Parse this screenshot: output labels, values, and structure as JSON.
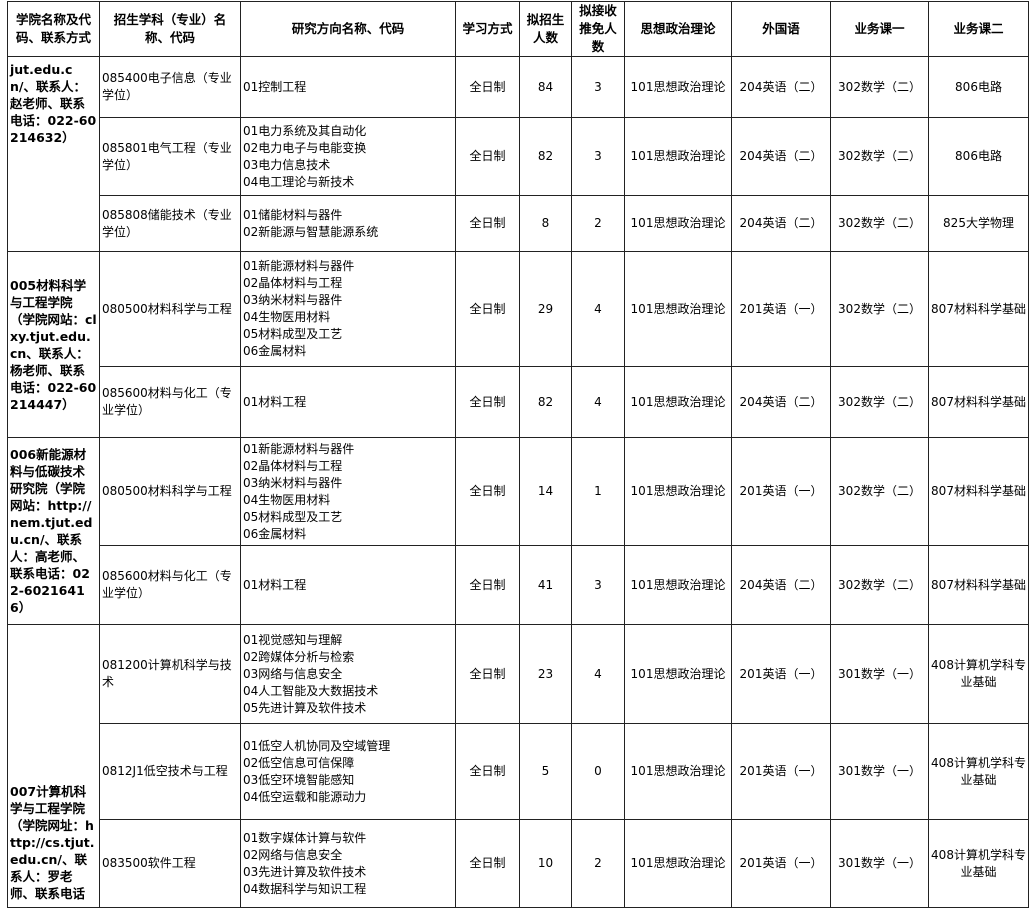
{
  "headers": [
    "学院名称及代码、联系方式",
    "招生学科（专业）名称、代码",
    "研究方向名称、代码",
    "学习方式",
    "拟招生人数",
    "拟接收推免人数",
    "思想政治理论",
    "外国语",
    "业务课一",
    "业务课二"
  ],
  "groups": [
    {
      "college": "jut.edu.cn/、联系人：赵老师、联系电话：022-60214632）",
      "align": "top",
      "rows": [
        {
          "subject": "085400电子信息（专业学位）",
          "directions": [
            "01控制工程"
          ],
          "mode": "全日制",
          "plan": "84",
          "exempt": "3",
          "politics": "101思想政治理论",
          "language": "204英语（二）",
          "course1": "302数学（二）",
          "course2": "806电路"
        },
        {
          "subject": "085801电气工程（专业学位）",
          "directions": [
            "01电力系统及其自动化",
            "02电力电子与电能变换",
            "03电力信息技术",
            "04电工理论与新技术"
          ],
          "mode": "全日制",
          "plan": "82",
          "exempt": "3",
          "politics": "101思想政治理论",
          "language": "204英语（二）",
          "course1": "302数学（二）",
          "course2": "806电路"
        },
        {
          "subject": "085808储能技术（专业学位）",
          "directions": [
            "01储能材料与器件",
            "02新能源与智慧能源系统"
          ],
          "mode": "全日制",
          "plan": "8",
          "exempt": "2",
          "politics": "101思想政治理论",
          "language": "204英语（二）",
          "course1": "302数学（二）",
          "course2": "825大学物理"
        }
      ]
    },
    {
      "college": "005材料科学与工程学院（学院网站：clxy.tjut.edu.cn、联系人：杨老师、联系电话：022-60214447）",
      "align": "middle",
      "rows": [
        {
          "subject": "080500材料科学与工程",
          "directions": [
            "01新能源材料与器件",
            "02晶体材料与工程",
            "03纳米材料与器件",
            "04生物医用材料",
            "05材料成型及工艺",
            "06金属材料"
          ],
          "mode": "全日制",
          "plan": "29",
          "exempt": "4",
          "politics": "101思想政治理论",
          "language": "201英语（一）",
          "course1": "302数学（二）",
          "course2": "807材料科学基础"
        },
        {
          "subject": "085600材料与化工（专业学位）",
          "directions": [
            "01材料工程"
          ],
          "mode": "全日制",
          "plan": "82",
          "exempt": "4",
          "politics": "101思想政治理论",
          "language": "204英语（二）",
          "course1": "302数学（二）",
          "course2": "807材料科学基础"
        }
      ]
    },
    {
      "college": "006新能源材料与低碳技术研究院（学院网站：http://nem.tjut.edu.cn/、联系人：高老师、联系电话：022-60216416）",
      "align": "middle",
      "rows": [
        {
          "subject": "080500材料科学与工程",
          "directions": [
            "01新能源材料与器件",
            "02晶体材料与工程",
            "03纳米材料与器件",
            "04生物医用材料",
            "05材料成型及工艺",
            "06金属材料"
          ],
          "mode": "全日制",
          "plan": "14",
          "exempt": "1",
          "politics": "101思想政治理论",
          "language": "201英语（一）",
          "course1": "302数学（二）",
          "course2": "807材料科学基础"
        },
        {
          "subject": "085600材料与化工（专业学位）",
          "directions": [
            "01材料工程"
          ],
          "mode": "全日制",
          "plan": "41",
          "exempt": "3",
          "politics": "101思想政治理论",
          "language": "204英语（二）",
          "course1": "302数学（二）",
          "course2": "807材料科学基础"
        }
      ]
    },
    {
      "college": "007计算机科学与工程学院（学院网址：http://cs.tjut.edu.cn/、联系人：罗老师、联系电话",
      "align": "bottom",
      "rows": [
        {
          "subject": "081200计算机科学与技术",
          "directions": [
            "01视觉感知与理解",
            "02跨媒体分析与检索",
            "03网络与信息安全",
            "04人工智能及大数据技术",
            "05先进计算及软件技术"
          ],
          "mode": "全日制",
          "plan": "23",
          "exempt": "4",
          "politics": "101思想政治理论",
          "language": "201英语（一）",
          "course1": "301数学（一）",
          "course2": "408计算机学科专业基础"
        },
        {
          "subject": "0812J1低空技术与工程",
          "directions": [
            "01低空人机协同及空域管理",
            "02低空信息可信保障",
            "03低空环境智能感知",
            "04低空运载和能源动力"
          ],
          "mode": "全日制",
          "plan": "5",
          "exempt": "0",
          "politics": "101思想政治理论",
          "language": "201英语（一）",
          "course1": "301数学（一）",
          "course2": "408计算机学科专业基础"
        },
        {
          "subject": "083500软件工程",
          "directions": [
            "01数字媒体计算与软件",
            "02网络与信息安全",
            "03先进计算及软件技术",
            "04数据科学与知识工程"
          ],
          "mode": "全日制",
          "plan": "10",
          "exempt": "2",
          "politics": "101思想政治理论",
          "language": "201英语（一）",
          "course1": "301数学（一）",
          "course2": "408计算机学科专业基础"
        }
      ]
    }
  ]
}
